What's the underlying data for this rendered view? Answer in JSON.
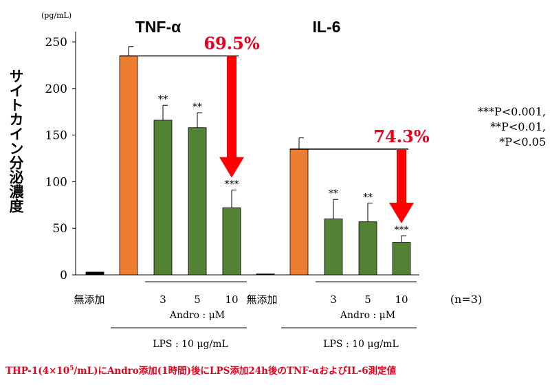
{
  "chart_data": {
    "type": "bar",
    "unit_label": "(pg/mL)",
    "ylabel": "サイトカイン分泌濃度",
    "ylim": [
      0,
      250
    ],
    "yticks": [
      0,
      50,
      100,
      150,
      200,
      250
    ],
    "grid": false,
    "groups": [
      {
        "title": "TNF-α",
        "reduction_label": "69.5%",
        "categories": [
          "無添加",
          "LPS",
          "3",
          "5",
          "10"
        ],
        "values": [
          3,
          235,
          166,
          158,
          72
        ],
        "errors": [
          0,
          10,
          16,
          16,
          19
        ],
        "colors": [
          "#000000",
          "#ed7d31",
          "#548235",
          "#548235",
          "#548235"
        ],
        "sig": [
          "",
          "",
          "**",
          "**",
          "***"
        ],
        "andro_label": "Andro : μM",
        "lps_label": "LPS : 10 μg/mL"
      },
      {
        "title": "IL-6",
        "reduction_label": "74.3%",
        "categories": [
          "無添加",
          "LPS",
          "3",
          "5",
          "10"
        ],
        "values": [
          1,
          135,
          60,
          57,
          35
        ],
        "errors": [
          0,
          12,
          21,
          20,
          7
        ],
        "colors": [
          "#000000",
          "#ed7d31",
          "#548235",
          "#548235",
          "#548235"
        ],
        "sig": [
          "",
          "",
          "**",
          "**",
          "***"
        ],
        "andro_label": "Andro : μM",
        "lps_label": "LPS : 10 μg/mL"
      }
    ],
    "n_label": "(n=3)",
    "significance_legend": [
      "***P<0.001,",
      "**P<0.01,",
      "*P<0.05"
    ]
  },
  "footer": {
    "pre": "THP-1(4×10",
    "exp": "5",
    "post": "/mL)にAndro添加(1時間)後にLPS添加24h後のTNF-αおよびIL-6測定値"
  },
  "colors": {
    "arrow": "#ff0000",
    "reduction_text": "#e8001c"
  }
}
